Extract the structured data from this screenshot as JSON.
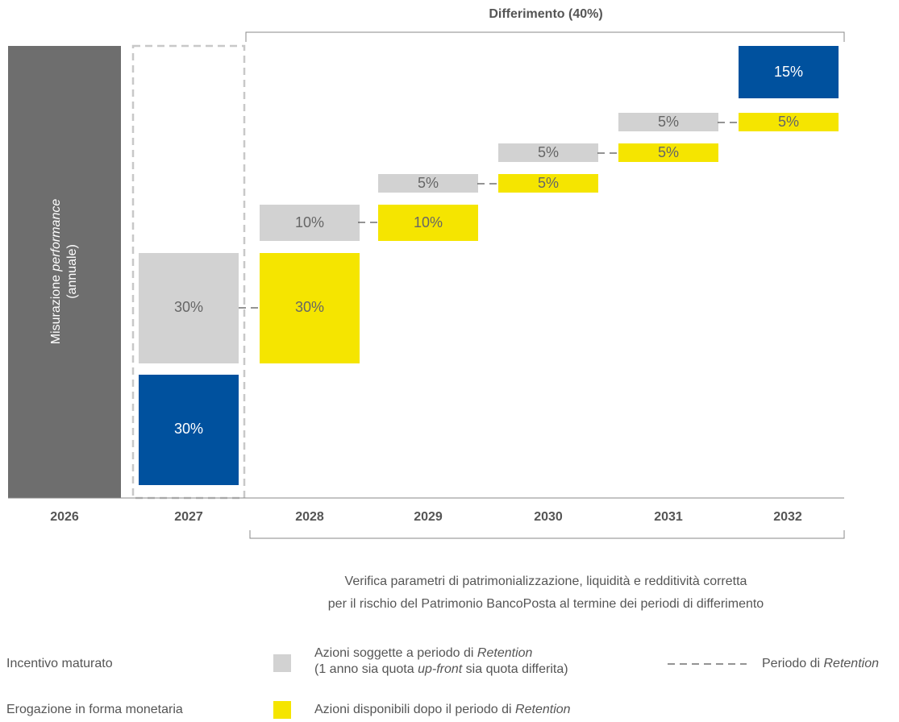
{
  "header": {
    "deferral": "Differimento (40%)"
  },
  "column_label": {
    "prefix": "Misurazione ",
    "italic": "performance",
    "line2": "(annuale)"
  },
  "years": [
    "2026",
    "2027",
    "2028",
    "2029",
    "2030",
    "2031",
    "2032"
  ],
  "blocks": {
    "y2027_gray": "30%",
    "y2027_blue": "30%",
    "y2028_yellow": "30%",
    "y2028_gray": "10%",
    "y2029_yellow": "10%",
    "y2029_gray": "5%",
    "y2030_yellow": "5%",
    "y2030_gray": "5%",
    "y2031_yellow": "5%",
    "y2031_gray": "5%",
    "y2032_yellow": "5%",
    "y2032_blue": "15%"
  },
  "note": {
    "line1": "Verifica parametri di patrimonializzazione, liquidità e redditività corretta",
    "line2": "per il rischio del Patrimonio BancoPosta al termine dei periodi di differimento"
  },
  "legend": {
    "incentive": "Incentivo maturato",
    "cash": "Erogazione in forma monetaria",
    "retention_shares": {
      "a": "Azioni soggette a periodo di ",
      "b": "Retention",
      "c": "(1 anno sia quota ",
      "d": "up-front",
      "e": " sia quota differita)"
    },
    "available_shares": {
      "a": "Azioni disponibili dopo il periodo di ",
      "b": "Retention"
    },
    "retention_period": {
      "a": "Periodo di ",
      "b": "Retention"
    }
  }
}
